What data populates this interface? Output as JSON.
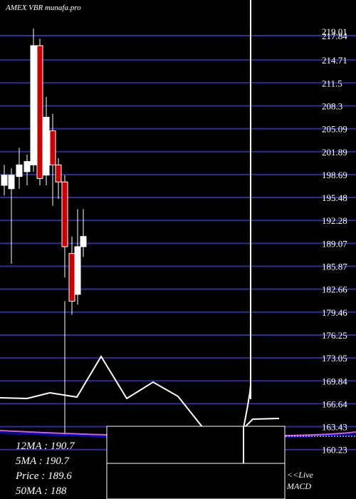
{
  "title": "AMEX  VBR munafa.pro",
  "stats": [
    {
      "label": "12MA",
      "value": "190.7"
    },
    {
      "label": "5MA",
      "value": "190.7"
    },
    {
      "label": "Price",
      "value": "189.6"
    },
    {
      "label": "50MA",
      "value": "188"
    }
  ],
  "live_label": "<<Live",
  "macd_label": "MACD",
  "colors": {
    "background": "#000000",
    "grid": "#2a2f9a",
    "up_candle": "#ffffff",
    "down_candle": "#cc0000",
    "macd_line": "#ffffff",
    "signal_line": "#0000ff",
    "ma_line": "#cc66cc"
  },
  "chart_data": {
    "type": "candlestick",
    "title": "AMEX  VBR munafa.pro",
    "y_axis_ticks": [
      "219.01",
      "217.84",
      "214.71",
      "211.5",
      "208.3",
      "205.09",
      "201.89",
      "198.69",
      "195.48",
      "192.28",
      "189.07",
      "185.87",
      "182.66",
      "179.46",
      "176.25",
      "173.05",
      "169.84",
      "166.64",
      "163.43",
      "160.23"
    ],
    "ylim": [
      160.23,
      219.01
    ],
    "grid": true,
    "candles": [
      {
        "open": 196.0,
        "close": 197.5,
        "high": 199.0,
        "low": 194.5,
        "dir": "up"
      },
      {
        "open": 195.5,
        "close": 197.5,
        "high": 198.5,
        "low": 184.5,
        "dir": "up"
      },
      {
        "open": 197.3,
        "close": 199.0,
        "high": 201.5,
        "low": 195.5,
        "dir": "up"
      },
      {
        "open": 198.0,
        "close": 199.5,
        "high": 200.5,
        "low": 196.0,
        "dir": "up"
      },
      {
        "open": 199.0,
        "close": 216.5,
        "high": 219.0,
        "low": 198.0,
        "dir": "up"
      },
      {
        "open": 216.5,
        "close": 197.0,
        "high": 217.5,
        "low": 196.0,
        "dir": "down"
      },
      {
        "open": 197.5,
        "close": 206.0,
        "high": 209.0,
        "low": 196.0,
        "dir": "up"
      },
      {
        "open": 204.0,
        "close": 199.0,
        "high": 206.5,
        "low": 193.0,
        "dir": "down"
      },
      {
        "open": 199.0,
        "close": 196.5,
        "high": 200.0,
        "low": 194.0,
        "dir": "down"
      },
      {
        "open": 196.5,
        "close": 187.0,
        "high": 197.5,
        "low": 182.5,
        "dir": "down"
      },
      {
        "open": 186.0,
        "close": 179.0,
        "high": 188.5,
        "low": 177.0,
        "dir": "down"
      },
      {
        "open": 180.0,
        "close": 187.0,
        "high": 192.5,
        "low": 178.5,
        "dir": "up"
      },
      {
        "open": 187.0,
        "close": 188.5,
        "high": 192.5,
        "low": 185.5,
        "dir": "up"
      }
    ],
    "macd": {
      "macd_line": [
        0.0,
        0.0,
        0.05,
        0.1,
        0.05,
        0.0,
        0.25,
        0.55,
        0.35,
        0.0,
        0.3,
        0.2,
        0.0,
        -0.55,
        -0.75,
        -0.85,
        -0.9,
        -0.3,
        0.45,
        0.45
      ],
      "signal_line": [
        -1.05,
        -1.07,
        -1.09,
        -1.11,
        -1.13,
        -1.14,
        -1.15,
        -1.16,
        -1.17,
        -1.17,
        -1.15,
        -1.12,
        -1.1,
        -1.05,
        -0.95,
        -0.9,
        -0.85,
        -0.7,
        -0.6,
        -0.55
      ]
    }
  }
}
